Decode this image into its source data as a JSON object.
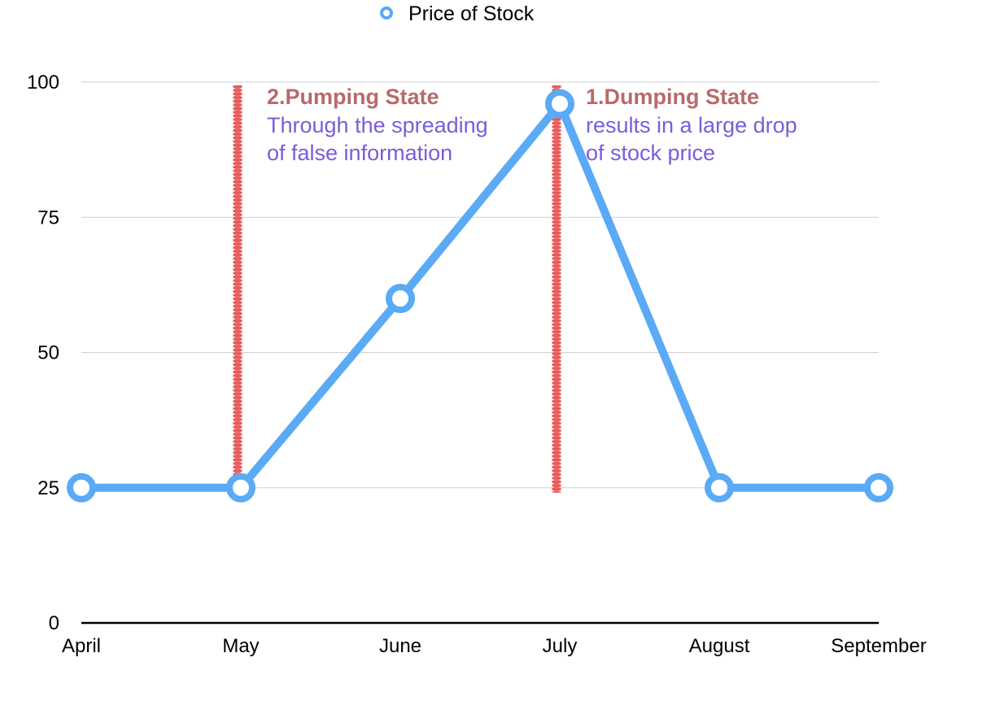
{
  "chart_data": {
    "type": "line",
    "categories": [
      "April",
      "May",
      "June",
      "July",
      "August",
      "September"
    ],
    "series": [
      {
        "name": "Price of Stock",
        "values": [
          25,
          25,
          60,
          96,
          25,
          25
        ],
        "color": "#5aaaf5"
      }
    ],
    "title": "",
    "xlabel": "",
    "ylabel": "",
    "ylim": [
      0,
      100
    ],
    "yticks": [
      0,
      25,
      50,
      75,
      100
    ],
    "grid": true,
    "legend": "top-center",
    "vlines": [
      {
        "category": "May",
        "from": 25,
        "to": 100,
        "color": "#e85a5a"
      },
      {
        "category": "July",
        "from": 25,
        "to": 100,
        "color": "#e85a5a"
      }
    ],
    "annotations": [
      {
        "category": "May",
        "title": "2.Pumping State",
        "lines": [
          "Through the spreading",
          "of false information"
        ],
        "title_color": "#b86a6a",
        "body_color": "#7b5cdc"
      },
      {
        "category": "July",
        "title": "1.Dumping State",
        "lines": [
          "results in a large drop",
          "of stock price"
        ],
        "title_color": "#b86a6a",
        "body_color": "#7b5cdc"
      }
    ]
  }
}
